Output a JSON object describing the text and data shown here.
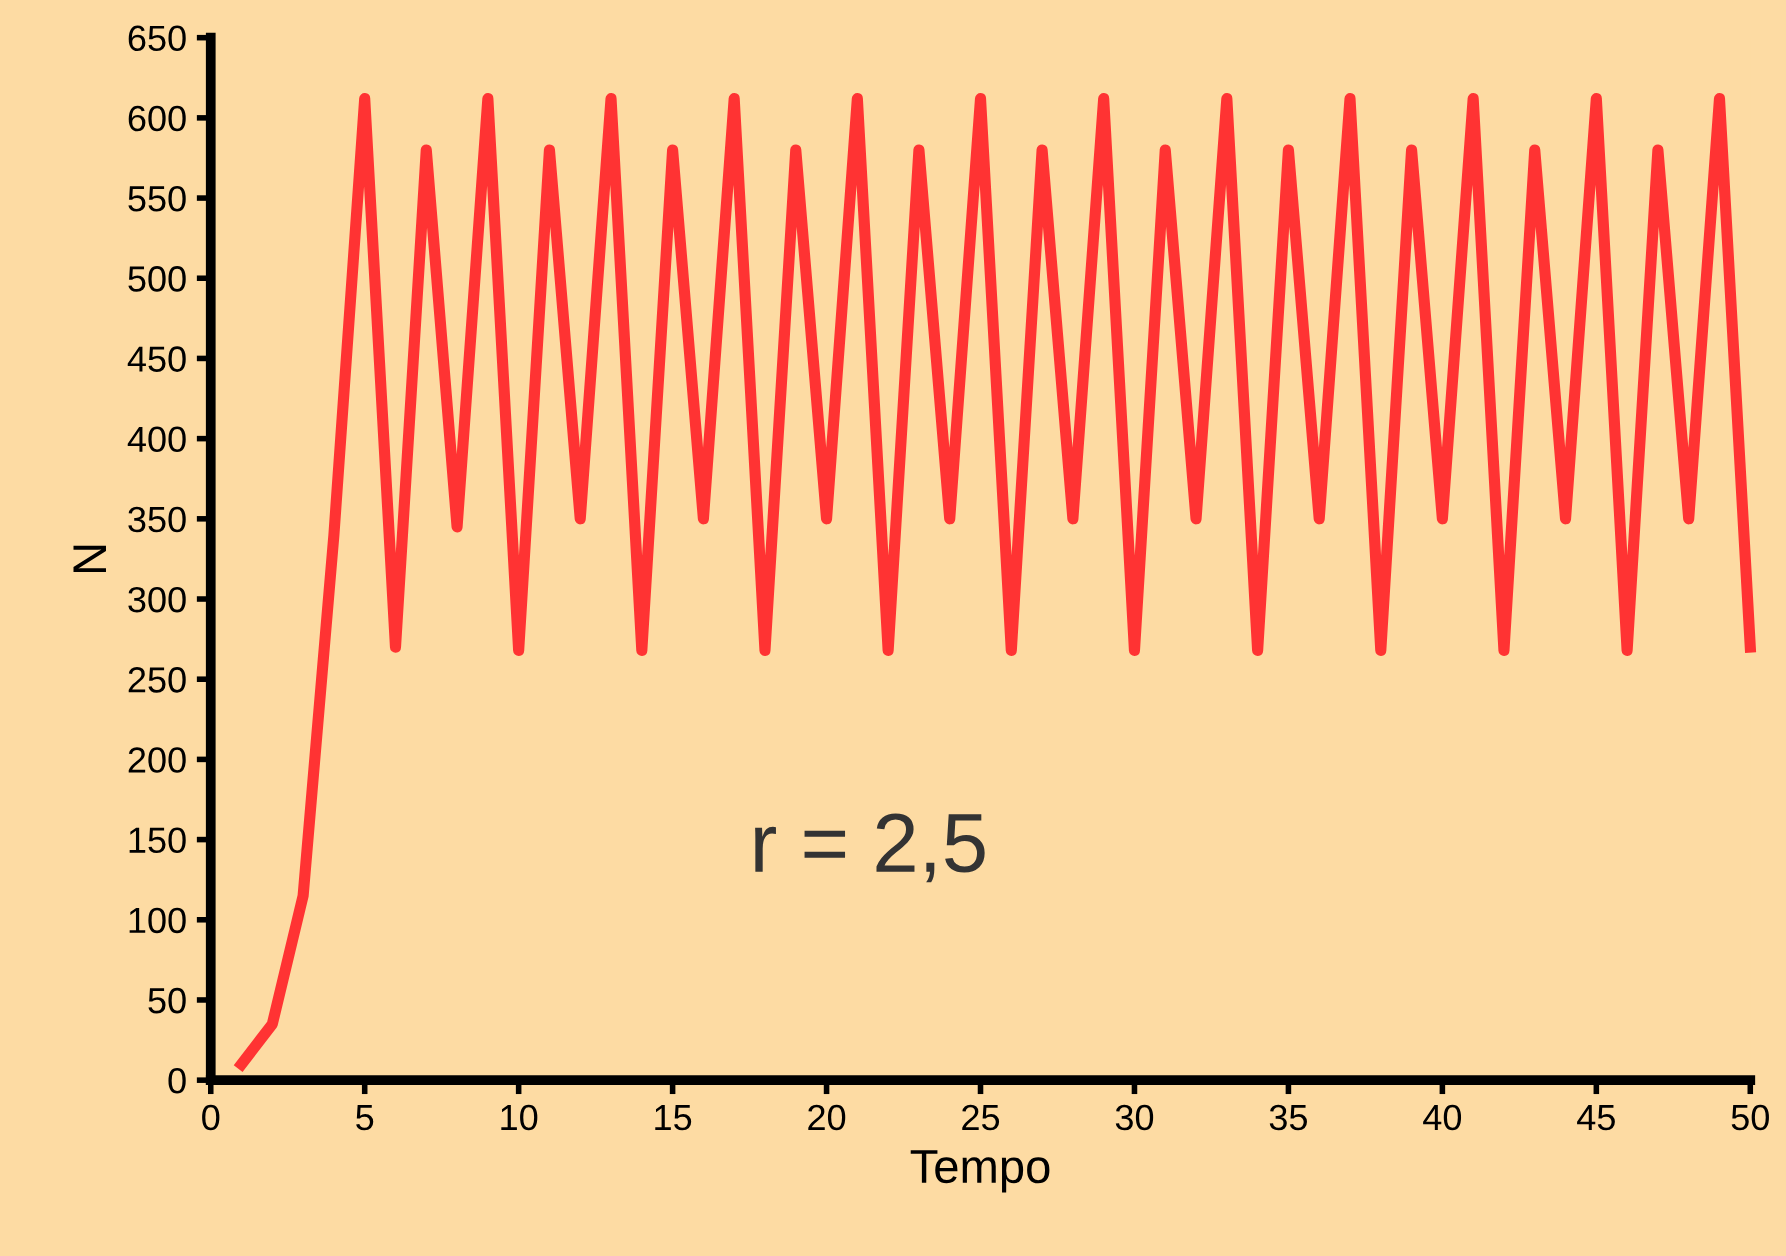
{
  "chart_data": {
    "type": "line",
    "xlabel": "Tempo",
    "ylabel": "N",
    "x": [
      1,
      2,
      3,
      4,
      5,
      6,
      7,
      8,
      9,
      10,
      11,
      12,
      13,
      14,
      15,
      16,
      17,
      18,
      19,
      20,
      21,
      22,
      23,
      24,
      25,
      26,
      27,
      28,
      29,
      30,
      31,
      32,
      33,
      34,
      35,
      36,
      37,
      38,
      39,
      40,
      41,
      42,
      43,
      44,
      45,
      46,
      47,
      48,
      49,
      50
    ],
    "series": [
      {
        "color": "#ff3333",
        "values": [
          10,
          35,
          115,
          340,
          612,
          270,
          580,
          345,
          612,
          268,
          580,
          350,
          612,
          268,
          580,
          350,
          612,
          268,
          580,
          350,
          612,
          268,
          580,
          350,
          612,
          268,
          580,
          350,
          612,
          268,
          580,
          350,
          612,
          268,
          580,
          350,
          612,
          268,
          580,
          350,
          612,
          268,
          580,
          350,
          612,
          268,
          580,
          350,
          612,
          270
        ]
      }
    ],
    "xlim": [
      0,
      50
    ],
    "xticks": [
      0,
      5,
      10,
      15,
      20,
      25,
      30,
      35,
      40,
      45,
      50
    ],
    "ylim": [
      0,
      650
    ],
    "yticks": [
      0,
      50,
      100,
      150,
      200,
      250,
      300,
      350,
      400,
      450,
      500,
      550,
      600,
      650
    ],
    "grid": false,
    "legend": false,
    "marker": "none",
    "line_style": "solid",
    "annotations": [
      "r = 2,5"
    ]
  }
}
